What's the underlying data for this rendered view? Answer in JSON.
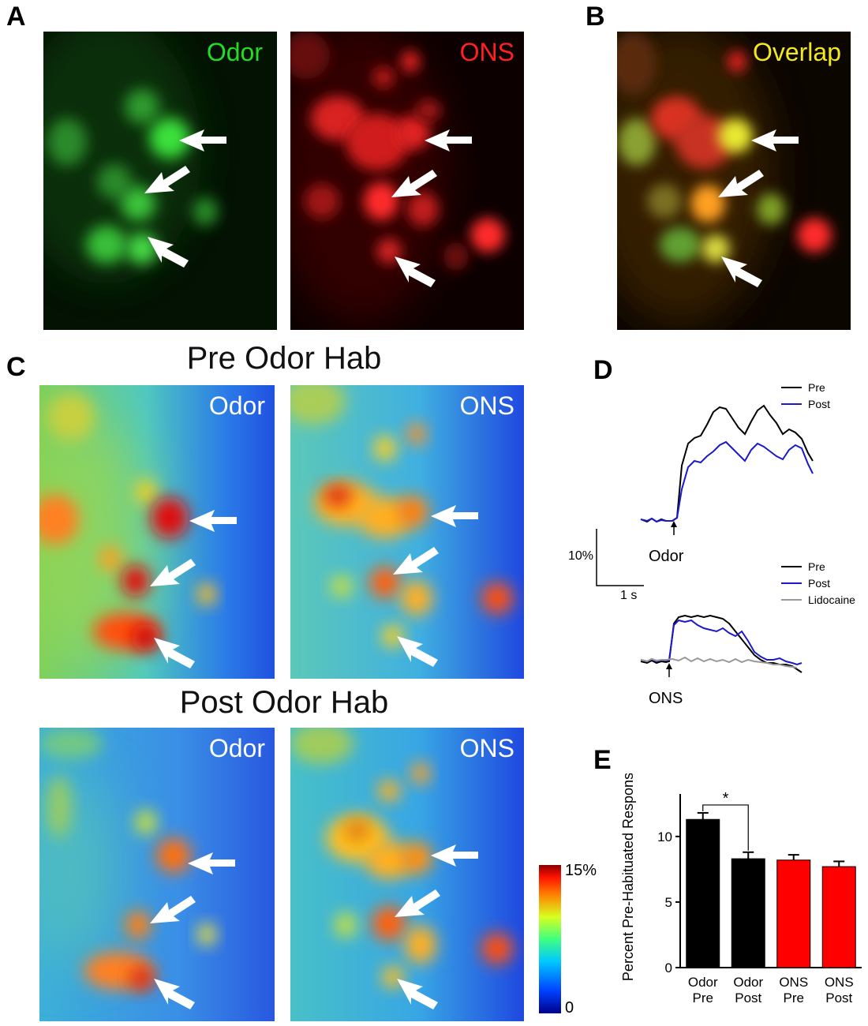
{
  "panels": {
    "A": "A",
    "B": "B",
    "C": "C",
    "D": "D",
    "E": "E"
  },
  "panel_a": {
    "left_label": "Odor",
    "right_label": "ONS"
  },
  "panel_b": {
    "label": "Overlap"
  },
  "panel_c": {
    "pre_title": "Pre Odor Hab",
    "post_title": "Post Odor Hab",
    "odor_label": "Odor",
    "ons_label": "ONS",
    "colorbar_max": "15%",
    "colorbar_min": "0"
  },
  "panel_d": {
    "top_legend": [
      "Pre",
      "Post"
    ],
    "bottom_legend": [
      "Pre",
      "Post",
      "Lidocaine"
    ],
    "odor_stim": "Odor",
    "ons_stim": "ONS",
    "scale_y": "10%",
    "scale_x": "1 s",
    "colors": {
      "pre": "#000000",
      "post": "#1a1acc",
      "lidocaine": "#999999"
    }
  },
  "chart_data": {
    "type": "bar",
    "ylabel": "Percent Pre-Habituated Response",
    "ylim": [
      0,
      13
    ],
    "yticks": [
      0,
      5,
      10
    ],
    "categories": [
      "Odor\nPre",
      "Odor\nPost",
      "ONS\nPre",
      "ONS\nPost"
    ],
    "category_lines": [
      [
        "Odor",
        "Pre"
      ],
      [
        "Odor",
        "Post"
      ],
      [
        "ONS",
        "Pre"
      ],
      [
        "ONS",
        "Post"
      ]
    ],
    "values": [
      11.3,
      8.3,
      8.2,
      7.7
    ],
    "errors": [
      0.5,
      0.5,
      0.4,
      0.4
    ],
    "colors": [
      "#000000",
      "#000000",
      "#ff0000",
      "#ff0000"
    ],
    "significance": {
      "between": [
        0,
        1
      ],
      "label": "*"
    }
  }
}
